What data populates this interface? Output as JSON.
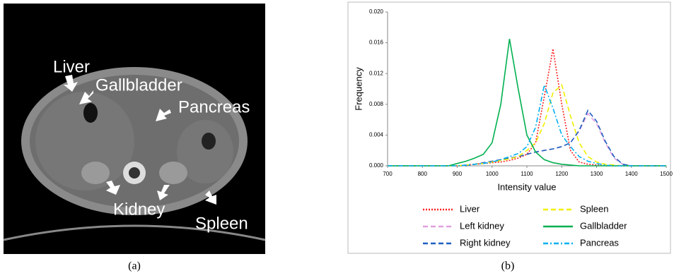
{
  "panel_a": {
    "labels": [
      "Liver",
      "Gallbladder",
      "Pancreas",
      "Kidney",
      "Spleen"
    ],
    "caption": "(a)"
  },
  "chart_data": {
    "type": "line",
    "caption": "(b)",
    "x_label": "Intensity value",
    "y_label": "Frequency",
    "x": [
      700,
      725,
      750,
      775,
      800,
      825,
      850,
      875,
      900,
      925,
      950,
      975,
      1000,
      1025,
      1050,
      1075,
      1100,
      1125,
      1150,
      1175,
      1200,
      1225,
      1250,
      1275,
      1300,
      1325,
      1350,
      1375,
      1400,
      1425,
      1450,
      1475,
      1500
    ],
    "xlim": [
      700,
      1500
    ],
    "xticks": [
      700,
      800,
      900,
      1000,
      1100,
      1200,
      1300,
      1400,
      1500
    ],
    "ylim": [
      0,
      0.02
    ],
    "yticks": [
      {
        "value": 0,
        "label": "0.000"
      },
      0.004,
      0.008,
      0.012,
      0.016,
      {
        "value": 0.02,
        "label": "0.020"
      }
    ],
    "series": [
      {
        "name": "Liver",
        "color": "#ff2020",
        "dash": "dotted",
        "values": [
          0,
          0,
          0,
          0,
          0,
          0,
          0,
          0,
          0,
          0.0001,
          0.0002,
          0.0003,
          0.0004,
          0.0005,
          0.0007,
          0.001,
          0.0015,
          0.003,
          0.009,
          0.0152,
          0.008,
          0.002,
          0.0005,
          0.0002,
          0.0001,
          0,
          0,
          0,
          0,
          0,
          0,
          0,
          0
        ]
      },
      {
        "name": "Left kidney",
        "color": "#e0a0e0",
        "dash": "dashed",
        "values": [
          0,
          0,
          0,
          0,
          0,
          0,
          0,
          0,
          0,
          0,
          0.0002,
          0.0004,
          0.0006,
          0.0008,
          0.001,
          0.0012,
          0.0015,
          0.0018,
          0.002,
          0.0022,
          0.0025,
          0.003,
          0.0045,
          0.0068,
          0.0055,
          0.003,
          0.001,
          0.0002,
          0,
          0,
          0,
          0,
          0
        ]
      },
      {
        "name": "Right kidney",
        "color": "#1f5fbf",
        "dash": "dashed",
        "values": [
          0,
          0,
          0,
          0,
          0,
          0,
          0,
          0,
          0,
          0,
          0.0002,
          0.0004,
          0.0006,
          0.0008,
          0.001,
          0.0012,
          0.0015,
          0.0018,
          0.002,
          0.0022,
          0.0025,
          0.003,
          0.0046,
          0.0072,
          0.0058,
          0.0032,
          0.0012,
          0.0002,
          0,
          0,
          0,
          0,
          0
        ]
      },
      {
        "name": "Spleen",
        "color": "#f0f000",
        "dash": "dashed",
        "values": [
          0,
          0,
          0,
          0,
          0,
          0,
          0,
          0,
          0,
          0.0001,
          0.0002,
          0.0003,
          0.0005,
          0.0007,
          0.0009,
          0.0012,
          0.002,
          0.003,
          0.0055,
          0.0095,
          0.0105,
          0.0065,
          0.003,
          0.0012,
          0.0005,
          0.0002,
          0.0001,
          0,
          0,
          0,
          0,
          0,
          0
        ]
      },
      {
        "name": "Gallbladder",
        "color": "#00b050",
        "dash": "solid",
        "values": [
          0,
          0,
          0,
          0,
          0,
          0,
          0,
          0,
          0.0003,
          0.0006,
          0.001,
          0.0015,
          0.003,
          0.008,
          0.0165,
          0.01,
          0.004,
          0.0018,
          0.0008,
          0.0004,
          0.0002,
          0.0001,
          0,
          0,
          0,
          0,
          0,
          0,
          0,
          0,
          0,
          0,
          0
        ]
      },
      {
        "name": "Pancreas",
        "color": "#00b0f0",
        "dash": "dashdot",
        "values": [
          0,
          0,
          0,
          0,
          0,
          0,
          0,
          0,
          0,
          0.0001,
          0.0002,
          0.0003,
          0.0005,
          0.0008,
          0.0012,
          0.0016,
          0.0025,
          0.005,
          0.0105,
          0.0075,
          0.004,
          0.0025,
          0.0012,
          0.0006,
          0.0003,
          0.0001,
          0,
          0,
          0,
          0,
          0,
          0,
          0
        ]
      }
    ]
  }
}
